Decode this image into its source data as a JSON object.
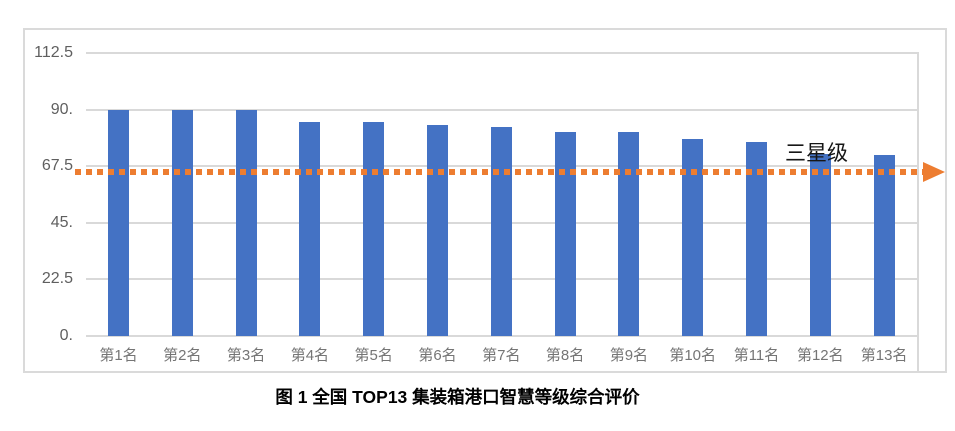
{
  "caption": "图 1 全国 TOP13 集装箱港口智慧等级综合评价",
  "chart_data": {
    "type": "bar",
    "title": "",
    "categories": [
      "第1名",
      "第2名",
      "第3名",
      "第4名",
      "第5名",
      "第6名",
      "第7名",
      "第8名",
      "第9名",
      "第10名",
      "第11名",
      "第12名",
      "第13名"
    ],
    "values": [
      90,
      90,
      90,
      85,
      85,
      84,
      83,
      81,
      81,
      78.5,
      77,
      72.5,
      72
    ],
    "xlabel": "",
    "ylabel": "",
    "ylim": [
      0,
      112.5
    ],
    "yticks": [
      0,
      22.5,
      45,
      67.5,
      90,
      112.5
    ],
    "ytick_labels": [
      "0.",
      "22.5",
      "45.",
      "67.5",
      "90.",
      "112.5"
    ],
    "grid": true,
    "legend": null,
    "bar_color": "#4472C4",
    "gridline_color": "#d9d9d9",
    "x_axis_label_color": "#757575",
    "y_axis_label_color": "#5f5f5f",
    "reference_line": {
      "value": 65,
      "label": "三星级",
      "color": "#ED7D31",
      "style": "dotted",
      "arrow": "right"
    }
  }
}
